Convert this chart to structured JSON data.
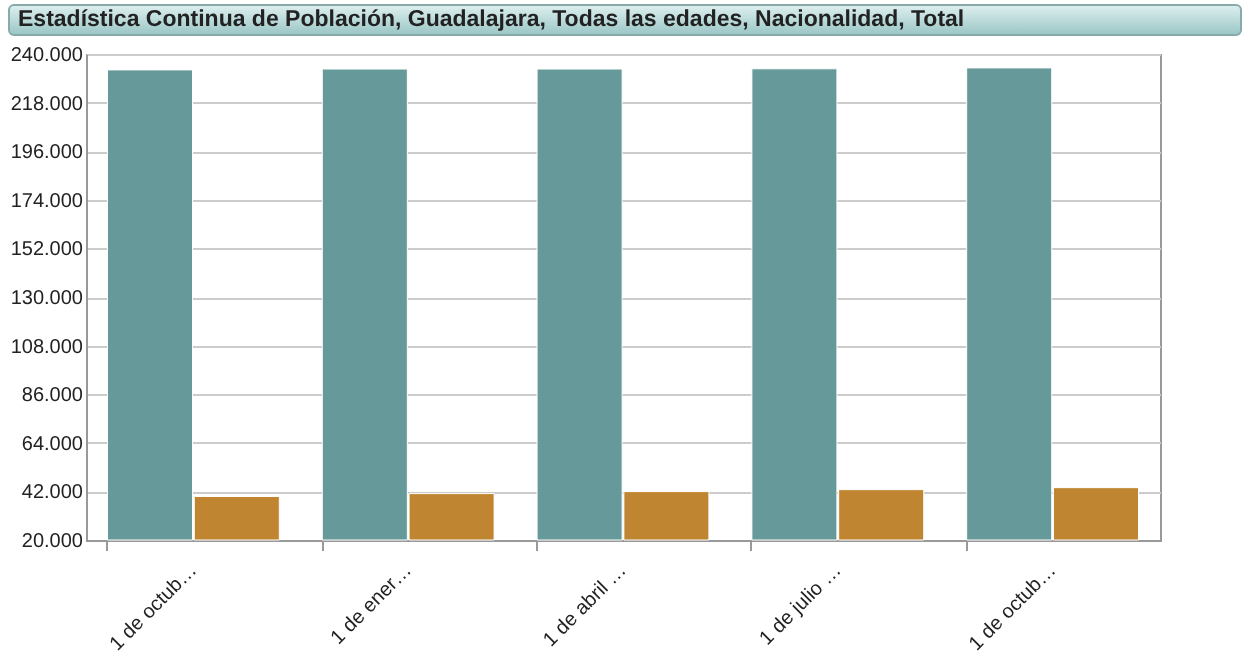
{
  "chart_data": {
    "type": "bar",
    "title": "Estadística Continua de Población, Guadalajara, Todas las edades, Nacionalidad, Total",
    "categories": [
      "1 de octub…",
      "1 de ener…",
      "1 de abril …",
      "1 de julio …",
      "1 de octub…"
    ],
    "series": [
      {
        "color": "#669999",
        "values": [
          232800,
          233200,
          233200,
          233300,
          233700
        ]
      },
      {
        "color": "#c08530",
        "values": [
          39700,
          41000,
          41900,
          42800,
          43700
        ]
      }
    ],
    "ylim": [
      20000,
      240000
    ],
    "yticks": [
      {
        "value": 20000,
        "label": "20.000"
      },
      {
        "value": 42000,
        "label": "42.000"
      },
      {
        "value": 64000,
        "label": "64.000"
      },
      {
        "value": 86000,
        "label": "86.000"
      },
      {
        "value": 108000,
        "label": "108.000"
      },
      {
        "value": 130000,
        "label": "130.000"
      },
      {
        "value": 152000,
        "label": "152.000"
      },
      {
        "value": 174000,
        "label": "174.000"
      },
      {
        "value": 196000,
        "label": "196.000"
      },
      {
        "value": 218000,
        "label": "218.000"
      },
      {
        "value": 240000,
        "label": "240.000"
      }
    ],
    "grid": "y",
    "legend": false
  }
}
